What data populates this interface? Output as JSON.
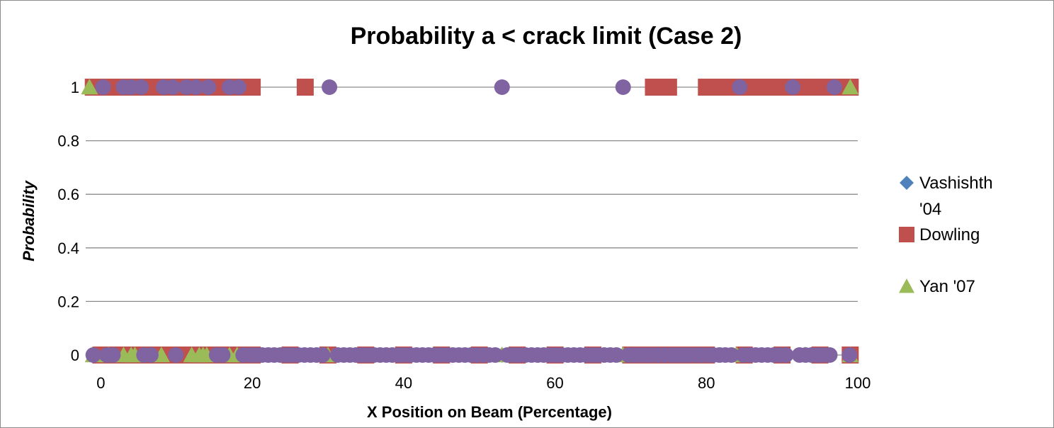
{
  "chart_data": {
    "type": "scatter",
    "title": "Probability a < crack limit (Case 2)",
    "xlabel": "X Position on Beam (Percentage)",
    "ylabel": "Probability",
    "xlim": [
      -2,
      100
    ],
    "ylim": [
      0,
      1
    ],
    "x_ticks": [
      "0",
      "20",
      "40",
      "60",
      "80",
      "100"
    ],
    "y_ticks": [
      "0",
      "0.2",
      "0.4",
      "0.6",
      "0.8",
      "1"
    ],
    "grid": "horizontal",
    "legend_position": "right",
    "legend": [
      {
        "label": "Vashishth '04",
        "marker": "diamond",
        "color": "#4f81bd"
      },
      {
        "label": "Dowling",
        "marker": "square",
        "color": "#c0504d"
      },
      {
        "label": "Yan '07",
        "marker": "triangle",
        "color": "#9bbb59"
      }
    ],
    "extra_series_color": "#8064a2",
    "series": [
      {
        "name": "Vashishth '04",
        "marker": "diamond",
        "color": "#4f81bd",
        "points_y1_x": [
          -1,
          99
        ],
        "points_y0_x": [
          -1,
          2,
          5,
          8,
          11,
          14,
          17,
          20,
          30,
          45,
          53,
          60,
          69,
          75,
          82,
          90,
          99
        ]
      },
      {
        "name": "Dowling",
        "marker": "square",
        "color": "#c0504d",
        "points_y1_x": [
          -1,
          0.5,
          2,
          3.5,
          5,
          6.5,
          8,
          9.5,
          11,
          12.5,
          14,
          15.5,
          17,
          18.5,
          20,
          27,
          73,
          75,
          80,
          81.5,
          83,
          84.5,
          86,
          87.5,
          89,
          90.5,
          92,
          93.5,
          95,
          96.5,
          98,
          99
        ],
        "points_y0_x": [
          0,
          2,
          4,
          6,
          8,
          10,
          12,
          14,
          16,
          18,
          20,
          25,
          30,
          35,
          40,
          45,
          50,
          55,
          60,
          65,
          70,
          72,
          74,
          76,
          78,
          80,
          85,
          90,
          95,
          99
        ]
      },
      {
        "name": "Yan '07",
        "marker": "triangle",
        "color": "#9bbb59",
        "points_y1_x": [
          -1.5,
          99
        ],
        "points_y0_x": [
          -1,
          1,
          3,
          4,
          4.5,
          8,
          12,
          13,
          13.5,
          14,
          17,
          18,
          30,
          53,
          69,
          84,
          93,
          99
        ]
      },
      {
        "color": "#8064a2",
        "marker": "circle",
        "points_y1_x": [
          0.3,
          3,
          4,
          5.3,
          8.3,
          9.5,
          11.3,
          12.6,
          14.2,
          17,
          18.2,
          30.2,
          53,
          69,
          84.4,
          91.4,
          96.9
        ],
        "points_y0_x": [
          -1,
          0.8,
          1.6,
          5.7,
          6.6,
          9.9,
          15.3,
          16.1,
          18.8,
          19.7,
          20.5,
          21.3,
          22.1,
          22.9,
          23.7,
          24.5,
          25.3,
          26.1,
          26.9,
          27.7,
          28.5,
          29.3,
          31.3,
          32.1,
          32.9,
          33.7,
          34.5,
          35.3,
          36.1,
          36.9,
          37.7,
          38.5,
          39.3,
          40.1,
          40.9,
          41.7,
          42.5,
          43.3,
          44.1,
          44.9,
          45.7,
          46.5,
          47.3,
          48.1,
          48.9,
          49.7,
          50.5,
          51.3,
          52.1,
          53.7,
          54.5,
          55.3,
          56.1,
          56.9,
          57.7,
          58.5,
          59.3,
          60.1,
          60.9,
          61.7,
          62.5,
          63.3,
          64.1,
          64.9,
          65.7,
          66.5,
          67.3,
          68.1,
          69.7,
          70.5,
          71.3,
          72.1,
          72.9,
          73.7,
          74.5,
          75.3,
          76.1,
          76.9,
          77.7,
          78.5,
          79.3,
          80.1,
          80.9,
          81.7,
          82.5,
          83.3,
          84.9,
          85.7,
          86.5,
          87.3,
          88.1,
          88.9,
          89.7,
          90.5,
          92.3,
          93.1,
          93.9,
          94.7,
          95.5,
          96.3,
          98.9
        ]
      }
    ]
  }
}
